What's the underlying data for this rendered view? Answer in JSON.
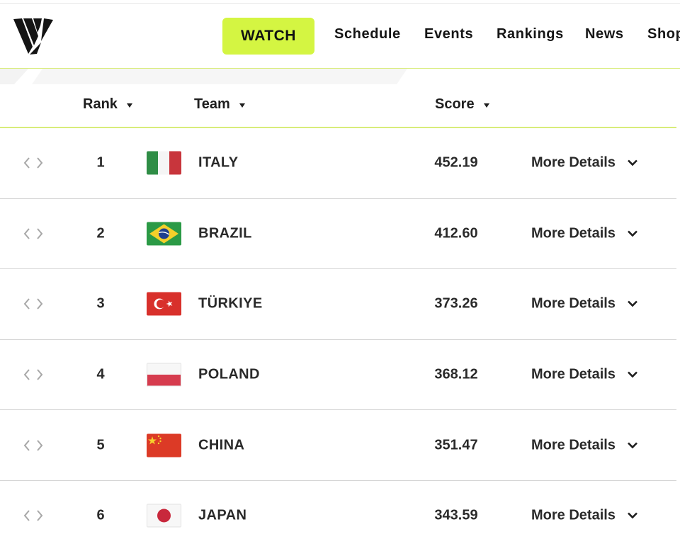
{
  "header": {
    "logo_icon": "volleyball-world-logo-icon",
    "watch_label": "WATCH",
    "nav": [
      "Schedule",
      "Events",
      "Rankings",
      "News",
      "Shop"
    ],
    "accent_color": "#d4f542"
  },
  "table": {
    "columns": {
      "rank": "Rank",
      "team": "Team",
      "score": "Score"
    },
    "rows": [
      {
        "rank": "1",
        "team": "ITALY",
        "flag": "italy-flag-icon",
        "score": "452.19",
        "details": "More Details"
      },
      {
        "rank": "2",
        "team": "BRAZIL",
        "flag": "brazil-flag-icon",
        "score": "412.60",
        "details": "More Details"
      },
      {
        "rank": "3",
        "team": "TÜRKIYE",
        "flag": "turkiye-flag-icon",
        "score": "373.26",
        "details": "More Details"
      },
      {
        "rank": "4",
        "team": "POLAND",
        "flag": "poland-flag-icon",
        "score": "368.12",
        "details": "More Details"
      },
      {
        "rank": "5",
        "team": "CHINA",
        "flag": "china-flag-icon",
        "score": "351.47",
        "details": "More Details"
      },
      {
        "rank": "6",
        "team": "JAPAN",
        "flag": "japan-flag-icon",
        "score": "343.59",
        "details": "More Details"
      }
    ]
  }
}
